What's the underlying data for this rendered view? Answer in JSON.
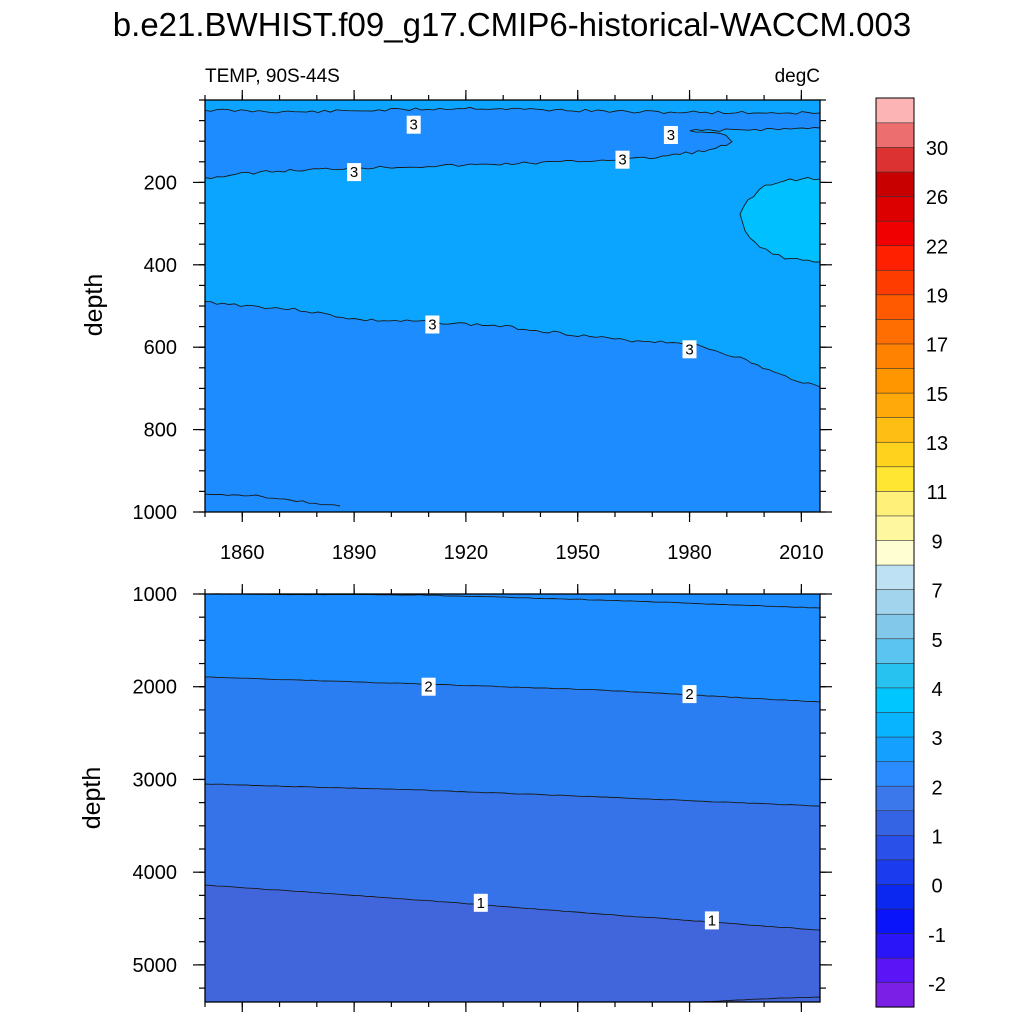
{
  "chart_data": {
    "type": "contour",
    "title": "b.e21.BWHIST.f09_g17.CMIP6-historical-WACCM.003",
    "left_label": "TEMP, 90S-44S",
    "right_label": "degC",
    "ylabel": "depth",
    "x_ticks": [
      1860,
      1890,
      1920,
      1950,
      1980,
      2010
    ],
    "xlim": [
      1850,
      2015
    ],
    "panels": [
      {
        "name": "upper",
        "ylim": [
          0,
          1000
        ],
        "y_ticks": [
          200,
          400,
          600,
          800,
          1000
        ],
        "fill_bands": [
          {
            "level_range": "3-4",
            "color": "#0ba5ff"
          },
          {
            "level_range": "2-3",
            "color": "#1d8cff"
          },
          {
            "level_range": "4-5",
            "color": "#00c0ff"
          }
        ],
        "contour_labels": [
          {
            "text": "3",
            "year": 1906,
            "depth": 60
          },
          {
            "text": "3",
            "year": 1975,
            "depth": 85
          },
          {
            "text": "3",
            "year": 1890,
            "depth": 175
          },
          {
            "text": "3",
            "year": 1962,
            "depth": 145
          },
          {
            "text": "3",
            "year": 1911,
            "depth": 545
          },
          {
            "text": "3",
            "year": 1980,
            "depth": 605
          }
        ]
      },
      {
        "name": "lower",
        "ylim": [
          1000,
          5400
        ],
        "y_ticks": [
          1000,
          2000,
          3000,
          4000,
          5000
        ],
        "fill_bands": [
          {
            "level_range": "2-3",
            "color": "#1d8cff"
          },
          {
            "level_range": "1.5-2",
            "color": "#2a7ef2"
          },
          {
            "level_range": "1-1.5",
            "color": "#3672e8"
          },
          {
            "level_range": "0.5-1",
            "color": "#4165db"
          }
        ],
        "contour_labels": [
          {
            "text": "2",
            "year": 1910,
            "depth": 2000
          },
          {
            "text": "2",
            "year": 1980,
            "depth": 2080
          },
          {
            "text": "1",
            "year": 1924,
            "depth": 4330
          },
          {
            "text": "1",
            "year": 1986,
            "depth": 4520
          }
        ]
      }
    ],
    "colorbar": {
      "labels": [
        "30",
        "26",
        "22",
        "19",
        "17",
        "15",
        "13",
        "11",
        "9",
        "7",
        "5",
        "4",
        "3",
        "2",
        "1",
        "0",
        "-1",
        "-2"
      ],
      "colors": [
        "#7c1fe6",
        "#5a14f5",
        "#2a14f8",
        "#0a14fa",
        "#0a28ef",
        "#1a3cee",
        "#2a50ea",
        "#3464e4",
        "#3a78ec",
        "#2a8cff",
        "#14a0ff",
        "#08b4ff",
        "#00c6ff",
        "#28c2f0",
        "#5cc4f0",
        "#82c8ea",
        "#a2d4ee",
        "#bee2f4",
        "#fefed2",
        "#fff7a0",
        "#fff07a",
        "#ffe632",
        "#ffd21e",
        "#ffbe14",
        "#ffaa0a",
        "#ff9600",
        "#ff8200",
        "#ff6e00",
        "#ff5a00",
        "#ff3c00",
        "#ff2000",
        "#f00000",
        "#dc0000",
        "#c80000",
        "#dc3232",
        "#ec6e6e",
        "#fcb4b4"
      ]
    }
  }
}
